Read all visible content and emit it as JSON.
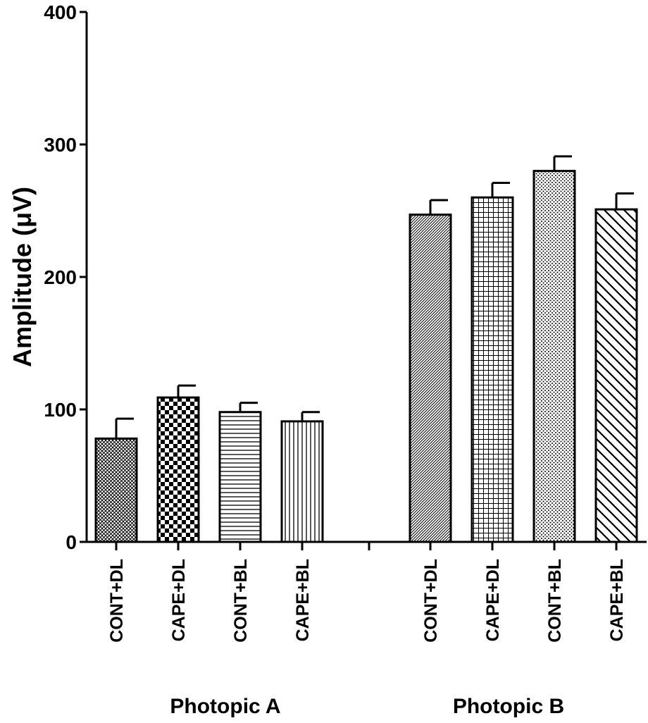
{
  "chart_data": {
    "type": "bar",
    "ylabel": "Amplitude (μV)",
    "ylim": [
      0,
      400
    ],
    "yticks": [
      0,
      100,
      200,
      300,
      400
    ],
    "grid": false,
    "legend": "none",
    "groups": [
      {
        "name": "Photopic A",
        "bars": [
          {
            "category": "CONT+DL",
            "value": 78,
            "error": 15,
            "pattern": "fine-crosshatch"
          },
          {
            "category": "CAPE+DL",
            "value": 109,
            "error": 9,
            "pattern": "checker"
          },
          {
            "category": "CONT+BL",
            "value": 98,
            "error": 7,
            "pattern": "horizontal-lines"
          },
          {
            "category": "CAPE+BL",
            "value": 91,
            "error": 7,
            "pattern": "vertical-lines"
          }
        ]
      },
      {
        "name": "Photopic B",
        "bars": [
          {
            "category": "CONT+DL",
            "value": 247,
            "error": 11,
            "pattern": "dense-diagonal"
          },
          {
            "category": "CAPE+DL",
            "value": 260,
            "error": 11,
            "pattern": "grid"
          },
          {
            "category": "CONT+BL",
            "value": 280,
            "error": 11,
            "pattern": "dots"
          },
          {
            "category": "CAPE+BL",
            "value": 251,
            "error": 12,
            "pattern": "wide-diagonal"
          }
        ]
      }
    ]
  },
  "colors": {
    "ink": "#000000",
    "background": "#ffffff"
  }
}
